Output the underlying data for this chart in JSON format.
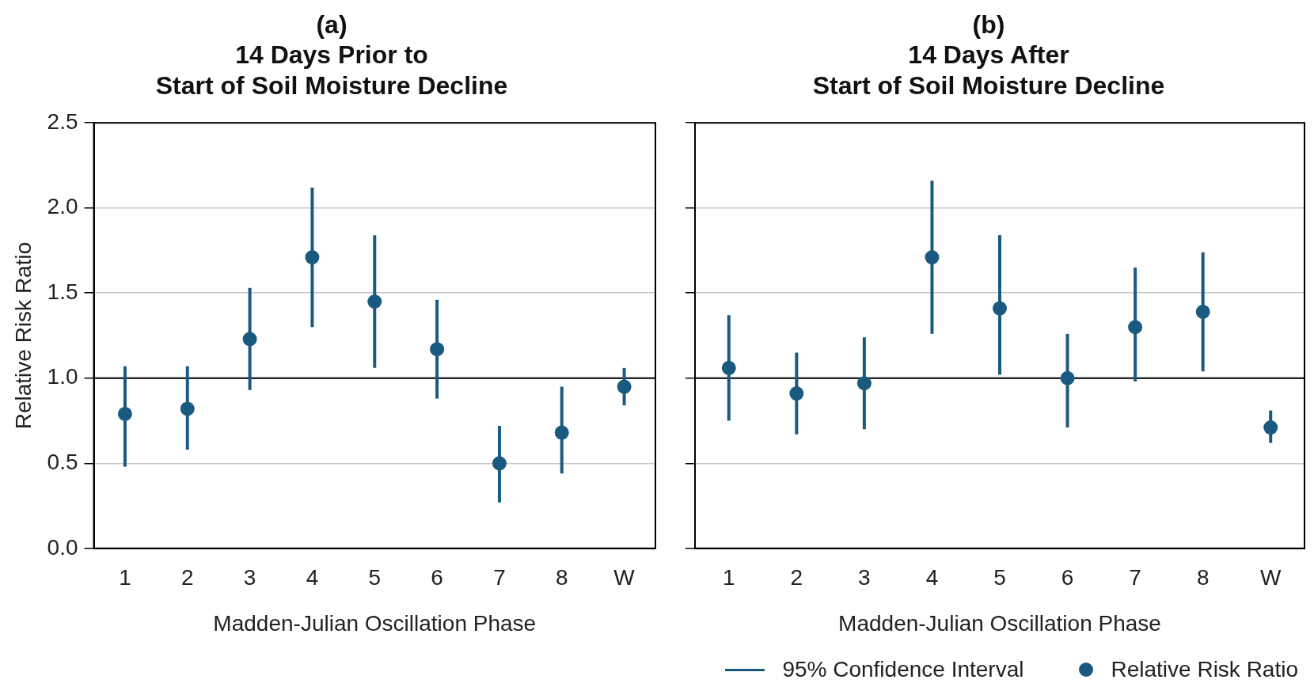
{
  "chart_data": [
    {
      "type": "scatter",
      "title": "(a)\n14 Days Prior to\nStart of Soil Moisture Decline",
      "xlabel": "Madden-Julian Oscillation Phase",
      "ylabel": "Relative Risk Ratio",
      "categories": [
        "1",
        "2",
        "3",
        "4",
        "5",
        "6",
        "7",
        "8",
        "W"
      ],
      "series": [
        {
          "color": "#1a5a80",
          "values": [
            0.79,
            0.82,
            1.23,
            1.71,
            1.45,
            1.17,
            0.5,
            0.68,
            0.95
          ],
          "errors": [
            [
              0.48,
              1.07
            ],
            [
              0.58,
              1.07
            ],
            [
              0.93,
              1.53
            ],
            [
              1.3,
              2.12
            ],
            [
              1.06,
              1.84
            ],
            [
              0.88,
              1.46
            ],
            [
              0.27,
              0.72
            ],
            [
              0.44,
              0.95
            ],
            [
              0.84,
              1.06
            ]
          ]
        }
      ],
      "ylim": [
        0,
        2.5
      ],
      "yticks": [
        {
          "value": 0,
          "label": "0.0"
        },
        {
          "value": 0.5,
          "label": "0.5"
        },
        {
          "value": 1,
          "label": "1.0"
        },
        {
          "value": 1.5,
          "label": "1.5"
        },
        {
          "value": 2,
          "label": "2.0"
        },
        {
          "value": 2.5,
          "label": "2.5"
        }
      ],
      "ref_lines": [
        {
          "axis": "y",
          "value": 1,
          "color": "#000000"
        }
      ],
      "grid": "y",
      "marker": "circle"
    },
    {
      "type": "scatter",
      "title": "(b)\n14 Days After\nStart of Soil Moisture Decline",
      "xlabel": "Madden-Julian Oscillation Phase",
      "categories": [
        "1",
        "2",
        "3",
        "4",
        "5",
        "6",
        "7",
        "8",
        "W"
      ],
      "series": [
        {
          "name": "Relative Risk Ratio",
          "color": "#1a5a80",
          "values": [
            1.06,
            0.91,
            0.97,
            1.71,
            1.41,
            1.0,
            1.3,
            1.39,
            0.71
          ],
          "errors": [
            [
              0.75,
              1.37
            ],
            [
              0.67,
              1.15
            ],
            [
              0.7,
              1.24
            ],
            [
              1.26,
              2.16
            ],
            [
              1.02,
              1.84
            ],
            [
              0.71,
              1.26
            ],
            [
              0.98,
              1.65
            ],
            [
              1.04,
              1.74
            ],
            [
              0.62,
              0.81
            ]
          ]
        }
      ],
      "ylim": [
        0,
        2.5
      ],
      "yticks": [
        0,
        0.5,
        1,
        1.5,
        2,
        2.5
      ],
      "ref_lines": [
        {
          "axis": "y",
          "value": 1,
          "color": "#000000"
        }
      ],
      "grid": "y",
      "marker": "circle",
      "tick_labels": "x",
      "legend": "bottom",
      "annotations": [
        "95% Confidence Interval"
      ]
    }
  ]
}
